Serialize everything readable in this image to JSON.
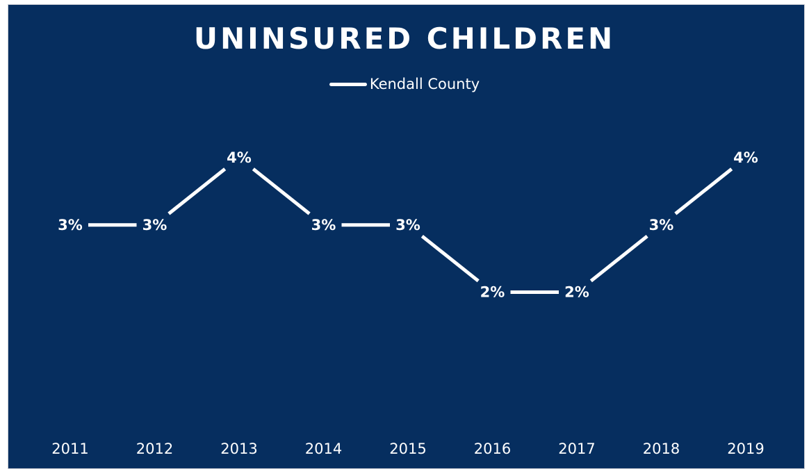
{
  "chart_data": {
    "type": "line",
    "title": "UNINSURED CHILDREN",
    "categories": [
      "2011",
      "2012",
      "2013",
      "2014",
      "2015",
      "2016",
      "2017",
      "2018",
      "2019"
    ],
    "series": [
      {
        "name": "Kendall County",
        "values": [
          3,
          3,
          4,
          3,
          3,
          2,
          2,
          3,
          4
        ],
        "labels": [
          "3%",
          "3%",
          "4%",
          "3%",
          "3%",
          "2%",
          "2%",
          "3%",
          "4%"
        ]
      }
    ],
    "ylim": [
      0,
      4
    ],
    "grid": false,
    "drop_lines": true,
    "legend_position": "top-center",
    "colors": {
      "background": "#062e5f",
      "line": "#ffffff",
      "text": "#ffffff"
    }
  }
}
